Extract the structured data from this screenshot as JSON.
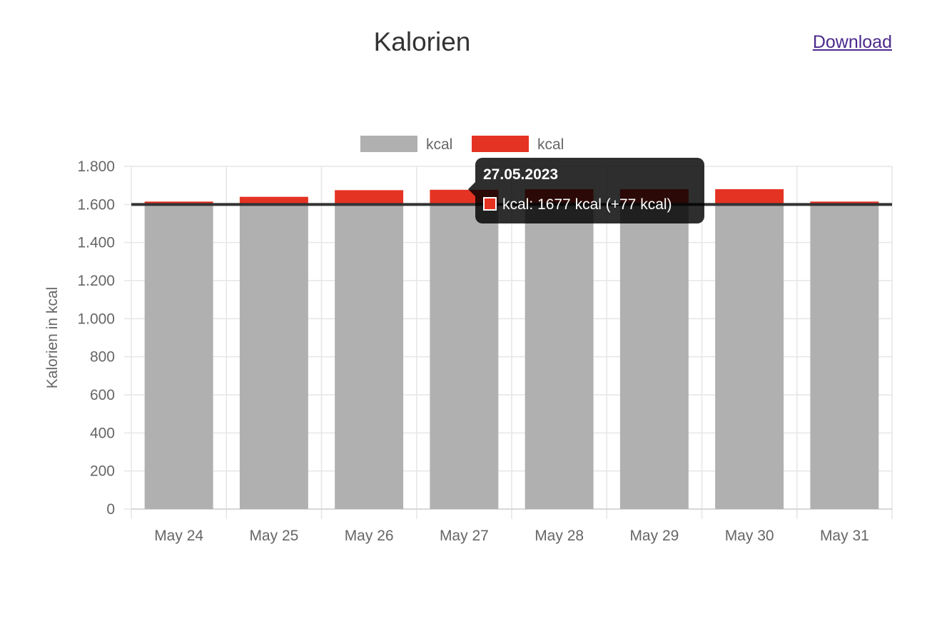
{
  "header": {
    "title": "Kalorien",
    "download_label": "Download"
  },
  "colors": {
    "base": "#b0b0b0",
    "excess": "#e53323",
    "target_line": "#333333",
    "grid": "#e6e6e6"
  },
  "tooltip": {
    "title": "27.05.2023",
    "line": "kcal: 1677 kcal (+77 kcal)"
  },
  "chart_data": {
    "type": "bar",
    "stacked": true,
    "categories": [
      "May 24",
      "May 25",
      "May 26",
      "May 27",
      "May 28",
      "May 29",
      "May 30",
      "May 31"
    ],
    "series": [
      {
        "name": "kcal",
        "values": [
          1600,
          1600,
          1600,
          1600,
          1600,
          1600,
          1600,
          1600
        ]
      },
      {
        "name": "kcal",
        "values": [
          15,
          40,
          75,
          77,
          80,
          80,
          80,
          15
        ]
      }
    ],
    "target": 1600,
    "ylabel": "Kalorien in kcal",
    "ylim": [
      0,
      1800
    ],
    "yticks": [
      0,
      200,
      400,
      600,
      800,
      1000,
      1200,
      1400,
      1600,
      1800
    ],
    "ytick_labels": [
      "0",
      "200",
      "400",
      "600",
      "800",
      "1.000",
      "1.200",
      "1.400",
      "1.600",
      "1.800"
    ],
    "grid": true,
    "legend_position": "top"
  }
}
